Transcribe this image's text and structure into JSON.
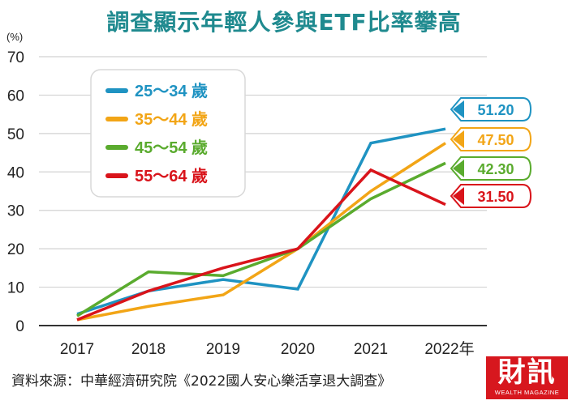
{
  "title": "調查顯示年輕人參與ETF比率攀高",
  "unit": "(%)",
  "source": "資料來源：中華經濟研究院《2022國人安心樂活享退大調查》",
  "brand": {
    "name": "財訊",
    "subtitle": "WEALTH MAGAZINE"
  },
  "chart_data": {
    "type": "line",
    "categories": [
      "2017",
      "2018",
      "2019",
      "2020",
      "2021",
      "2022年"
    ],
    "ylim": [
      0,
      70
    ],
    "yticks": [
      "0",
      "10",
      "20",
      "30",
      "40",
      "50",
      "60",
      "70"
    ],
    "grid": true,
    "legend_position": "top-left",
    "series": [
      {
        "name": "25～34 歲",
        "color": "#1f93c2",
        "values": [
          3,
          9,
          12,
          9.5,
          47.5,
          51.2
        ],
        "end_label": "51.20"
      },
      {
        "name": "35～44 歲",
        "color": "#f2a516",
        "values": [
          1.5,
          5,
          8,
          20,
          35,
          47.5
        ],
        "end_label": "47.50"
      },
      {
        "name": "45～54 歲",
        "color": "#5aab2e",
        "values": [
          2.5,
          14,
          13,
          20,
          33,
          42.3
        ],
        "end_label": "42.30"
      },
      {
        "name": "55～64 歲",
        "color": "#d9141b",
        "values": [
          1.5,
          9,
          15,
          20,
          40.5,
          31.5
        ],
        "end_label": "31.50"
      }
    ]
  }
}
